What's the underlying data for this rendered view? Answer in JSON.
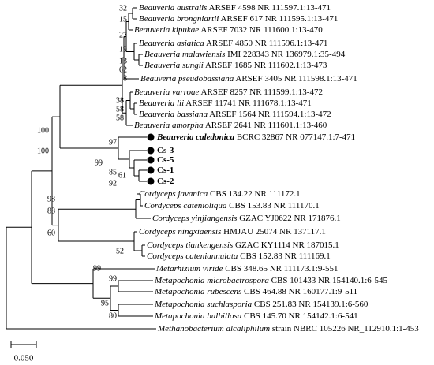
{
  "taxa": [
    {
      "name": "Beauveria australis",
      "rest": "ARSEF 4598 NR 111597.1:13-471"
    },
    {
      "name": "Beauveria brongniartii",
      "rest": "ARSEF 617 NR 111595.1:13-471"
    },
    {
      "name": "Beauveria kipukae",
      "rest": "ARSEF 7032 NR 111600.1:13-470"
    },
    {
      "name": "Beauveria asiatica",
      "rest": "ARSEF 4850 NR 111596.1:13-471"
    },
    {
      "name": "Beauveria malawiensis",
      "rest": "IMI 228343 NR 136979.1:35-494"
    },
    {
      "name": "Beauveria sungii",
      "rest": "ARSEF 1685 NR 111602.1:13-473"
    },
    {
      "name": "Beauveria pseudobassiana",
      "rest": "ARSEF 3405 NR 111598.1:13-471"
    },
    {
      "name": "Beauveria varroae",
      "rest": "ARSEF 8257 NR 111599.1:13-472"
    },
    {
      "name": "Beauveria lii",
      "rest": "ARSEF 11741 NR 111678.1:13-471"
    },
    {
      "name": "Beauveria bassiana",
      "rest": "ARSEF 1564 NR 111594.1:13-472"
    },
    {
      "name": "Beauveria amorpha",
      "rest": "ARSEF 2641 NR 111601.1:13-460"
    },
    {
      "name": "Beauveria caledonica",
      "rest": "BCRC 32867 NR 077147.1:7-471"
    },
    {
      "name": "Cs-3"
    },
    {
      "name": "Cs-5"
    },
    {
      "name": "Cs-1"
    },
    {
      "name": "Cs-2"
    },
    {
      "name": "Cordyceps javanica",
      "rest": "CBS 134.22 NR 111172.1"
    },
    {
      "name": "Cordyceps catenioliqua",
      "rest": "CBS 153.83 NR 111170.1"
    },
    {
      "name": "Cordyceps yinjiangensis",
      "rest": "GZAC YJ0622 NR 171876.1"
    },
    {
      "name": "Cordyceps ningxiaensis",
      "rest": "HMJAU 25074 NR 137117.1"
    },
    {
      "name": "Cordyceps tiankengensis",
      "rest": "GZAC KY1114 NR 187015.1"
    },
    {
      "name": "Cordyceps cateniannulata",
      "rest": "CBS 152.83 NR 111169.1"
    },
    {
      "name": "Metarhizium viride",
      "rest": "CBS 348.65 NR 111173.1:9-551"
    },
    {
      "name": "Metapochonia microbactrospora",
      "rest": "CBS 101433 NR 154140.1:6-545"
    },
    {
      "name": "Metapochonia rubescens",
      "rest": "CBS 464.88 NR 160177.1:9-511"
    },
    {
      "name": "Metapochonia suchlasporia",
      "rest": "CBS 251.83 NR 154139.1:6-560"
    },
    {
      "name": "Metapochonia bulbillosa",
      "rest": "CBS 145.70 NR 154142.1:6-541"
    },
    {
      "name": "Methanobacterium alcaliphilum",
      "rest": "strain NBRC 105226 NR_112910.1:1-453"
    }
  ],
  "bootstrap": [
    32,
    15,
    27,
    19,
    13,
    62,
    8,
    38,
    58,
    58,
    100,
    100,
    97,
    99,
    85,
    61,
    92,
    98,
    88,
    60,
    52,
    99,
    99,
    95,
    80
  ],
  "scale_bar": "0.050"
}
